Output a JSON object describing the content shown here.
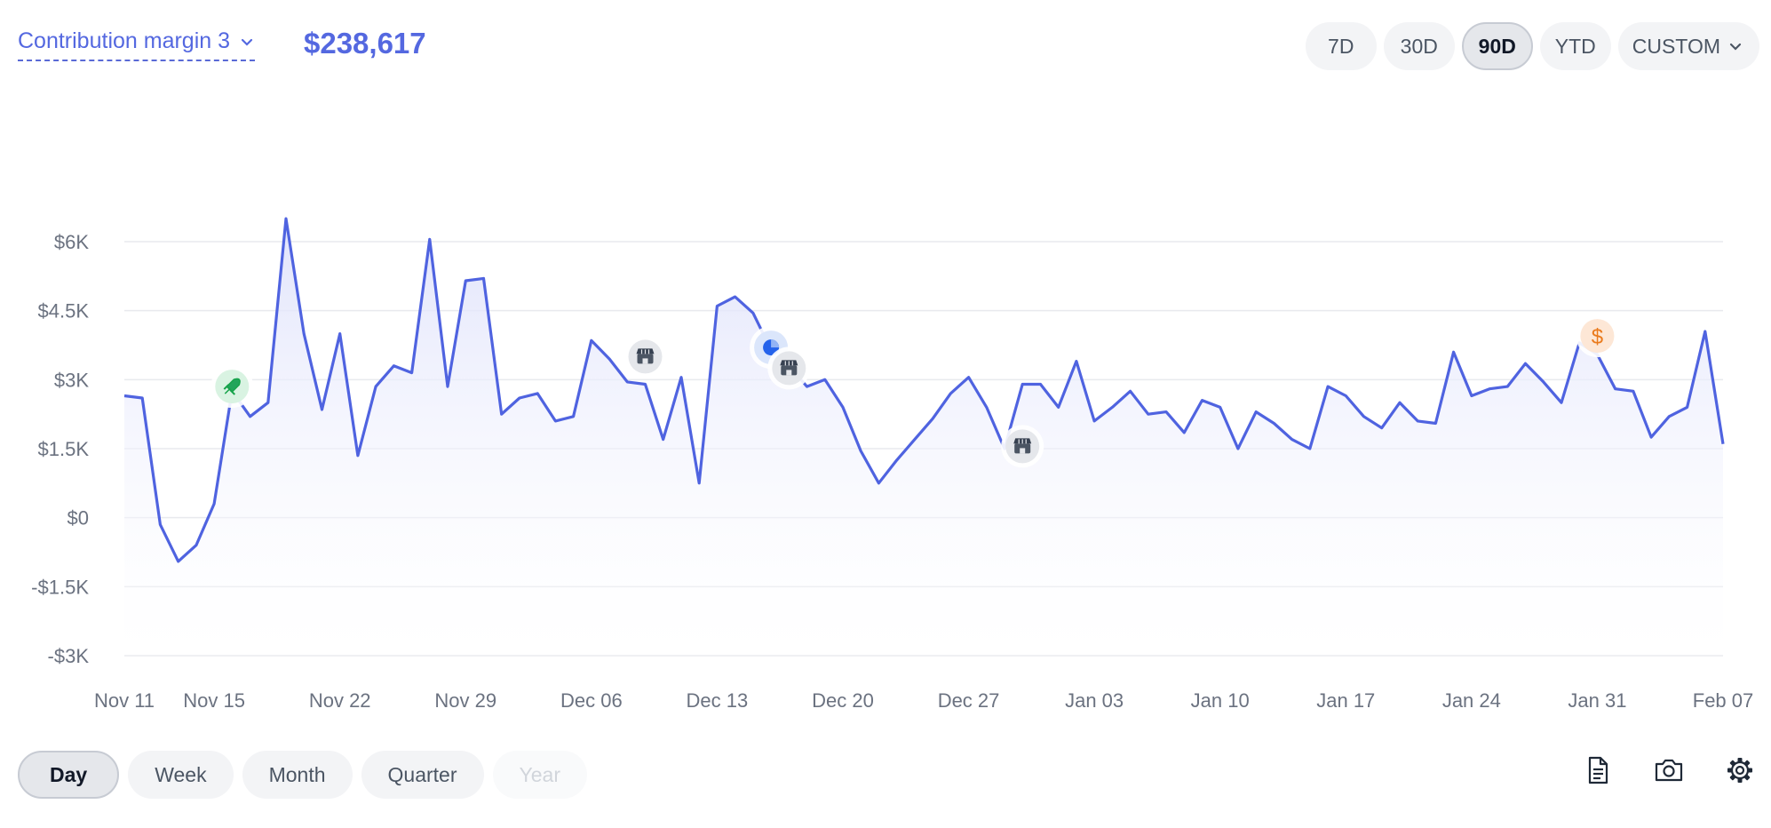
{
  "header": {
    "metric_label": "Contribution margin 3",
    "metric_value": "$238,617",
    "ranges": [
      {
        "label": "7D",
        "active": false
      },
      {
        "label": "30D",
        "active": false
      },
      {
        "label": "90D",
        "active": true
      },
      {
        "label": "YTD",
        "active": false
      },
      {
        "label": "CUSTOM",
        "active": false
      }
    ]
  },
  "granularity": [
    {
      "label": "Day",
      "state": "active"
    },
    {
      "label": "Week",
      "state": "normal"
    },
    {
      "label": "Month",
      "state": "normal"
    },
    {
      "label": "Quarter",
      "state": "normal"
    },
    {
      "label": "Year",
      "state": "disabled"
    }
  ],
  "tools": [
    "report-icon",
    "camera-icon",
    "settings-gear-icon"
  ],
  "colors": {
    "accent": "#5468e0",
    "line": "#4f63e0",
    "fill": "#e8e9fb",
    "grid": "#e5e7eb"
  },
  "chart_data": {
    "type": "area",
    "title": "",
    "xlabel": "",
    "ylabel": "",
    "ylim": [
      -3000,
      6000
    ],
    "yticks": [
      6000,
      4500,
      3000,
      1500,
      0,
      -1500,
      -3000
    ],
    "ytick_labels": [
      "$6K",
      "$4.5K",
      "$3K",
      "$1.5K",
      "$0",
      "-$1.5K",
      "-$3K"
    ],
    "xticks": [
      {
        "label": "Nov 11",
        "day": 0
      },
      {
        "label": "Nov 15",
        "day": 5
      },
      {
        "label": "Nov 22",
        "day": 12
      },
      {
        "label": "Nov 29",
        "day": 19
      },
      {
        "label": "Dec 06",
        "day": 26
      },
      {
        "label": "Dec 13",
        "day": 33
      },
      {
        "label": "Dec 20",
        "day": 40
      },
      {
        "label": "Dec 27",
        "day": 47
      },
      {
        "label": "Jan 03",
        "day": 54
      },
      {
        "label": "Jan 10",
        "day": 61
      },
      {
        "label": "Jan 17",
        "day": 68
      },
      {
        "label": "Jan 24",
        "day": 75
      },
      {
        "label": "Jan 31",
        "day": 82
      },
      {
        "label": "Feb 07",
        "day": 89
      }
    ],
    "series": [
      {
        "values": [
          2650,
          2600,
          -150,
          -950,
          -600,
          300,
          2750,
          2200,
          2500,
          6500,
          4000,
          2350,
          4000,
          1350,
          2850,
          3300,
          3150,
          6050,
          2850,
          5150,
          5200,
          2250,
          2600,
          2700,
          2100,
          2200,
          3850,
          3450,
          2950,
          2900,
          1700,
          3050,
          750,
          4600,
          4800,
          4450,
          3650,
          3300,
          2850,
          3000,
          2400,
          1450,
          750,
          1250,
          1700,
          2150,
          2700,
          3050,
          2400,
          1500,
          2900,
          2900,
          2400,
          3400,
          2100,
          2400,
          2750,
          2250,
          2300,
          1850,
          2550,
          2400,
          1500,
          2300,
          2050,
          1700,
          1500,
          2850,
          2650,
          2200,
          1950,
          2500,
          2100,
          2050,
          3600,
          2650,
          2800,
          2850,
          3350,
          2950,
          2500,
          3800,
          3550,
          2800,
          2750,
          1750,
          2200,
          2400,
          4050,
          1600
        ]
      }
    ],
    "annotations": [
      {
        "day": 6,
        "value": 2850,
        "icon": "rocket-icon"
      },
      {
        "day": 29,
        "value": 3500,
        "icon": "store-icon"
      },
      {
        "day": 36,
        "value": 3700,
        "icon": "pie-chart-icon"
      },
      {
        "day": 37,
        "value": 3250,
        "icon": "store-icon"
      },
      {
        "day": 50,
        "value": 1550,
        "icon": "store-icon"
      },
      {
        "day": 82,
        "value": 3950,
        "icon": "dollar-icon"
      }
    ]
  }
}
